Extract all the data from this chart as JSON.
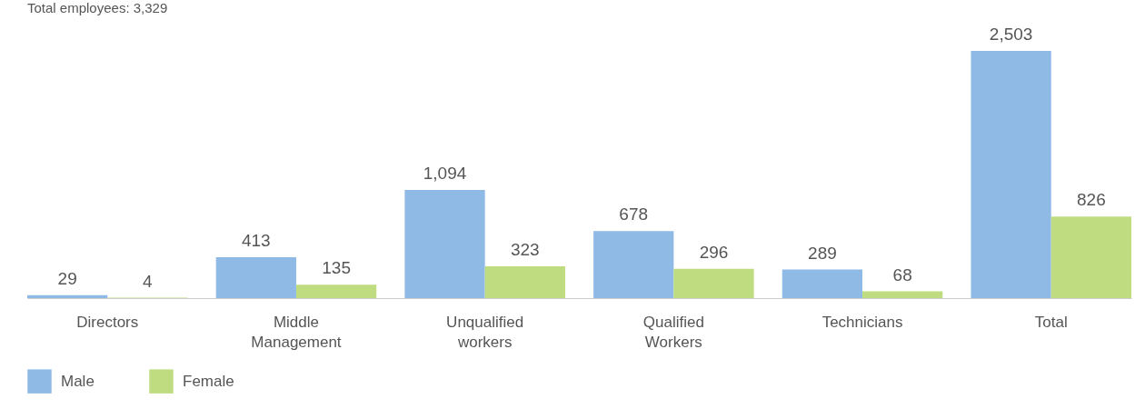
{
  "chart_data": {
    "type": "bar",
    "title": "Total employees: 3,329",
    "categories": [
      "Directors",
      "Middle Management",
      "Unqualified workers",
      "Qualified Workers",
      "Technicians",
      "Total"
    ],
    "series": [
      {
        "name": "Male",
        "color": "#8fbae6",
        "values": [
          29,
          413,
          1094,
          678,
          289,
          2503
        ],
        "value_labels": [
          "29",
          "413",
          "1,094",
          "678",
          "289",
          "2,503"
        ]
      },
      {
        "name": "Female",
        "color": "#bfdd80",
        "values": [
          4,
          135,
          323,
          296,
          68,
          826
        ],
        "value_labels": [
          "4",
          "135",
          "323",
          "296",
          "68",
          "826"
        ]
      }
    ],
    "legend": "bottom left",
    "grid": false
  }
}
